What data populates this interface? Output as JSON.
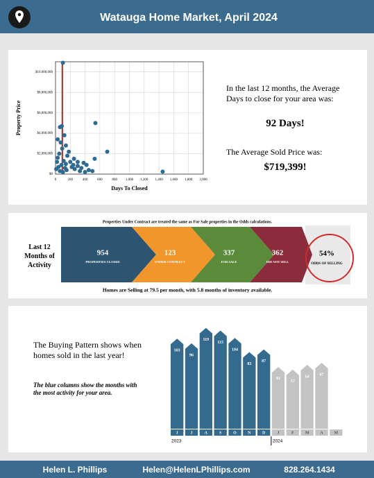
{
  "header": {
    "title": "Watauga Home Market, April 2024"
  },
  "chart_data": [
    {
      "type": "scatter",
      "x_label": "Days To Closed",
      "y_label": "Property Price",
      "color": "#2e6b93",
      "x": [
        100,
        60,
        85,
        120,
        30,
        70,
        140,
        540,
        700,
        1450,
        530,
        420,
        380,
        300,
        250,
        200,
        180,
        160,
        90,
        50,
        20,
        10,
        40,
        80,
        110,
        130,
        150,
        220,
        260,
        330,
        350,
        450,
        60,
        100,
        30,
        140,
        240,
        300,
        400,
        500
      ],
      "y": [
        10900000,
        4600000,
        4700000,
        3800000,
        3400000,
        3100000,
        2800000,
        5000000,
        2200000,
        250000,
        1500000,
        900000,
        1100000,
        800000,
        1500000,
        1200000,
        2200000,
        1800000,
        2500000,
        2000000,
        1200000,
        500000,
        700000,
        900000,
        1300000,
        600000,
        400000,
        700000,
        500000,
        300000,
        600000,
        400000,
        300000,
        200000,
        1600000,
        1000000,
        900000,
        1200000,
        200000,
        300000
      ],
      "xlim": [
        0,
        2000
      ],
      "ylim": [
        0,
        11000000
      ],
      "xticks": [
        0,
        200,
        400,
        600,
        800,
        {
          "value": 1000,
          "label": "1,000"
        },
        {
          "value": 1200,
          "label": "1,200"
        },
        {
          "value": 1400,
          "label": "1,400"
        },
        {
          "value": 1600,
          "label": "1,600"
        },
        {
          "value": 1800,
          "label": "1,800"
        },
        {
          "value": 2000,
          "label": "2,000"
        }
      ],
      "yticks": [
        {
          "value": 0,
          "label": "$0"
        },
        {
          "value": 2000000,
          "label": "$2,000,000"
        },
        {
          "value": 4000000,
          "label": "$4,000,000"
        },
        {
          "value": 6000000,
          "label": "$6,000,000"
        },
        {
          "value": 8000000,
          "label": "$8,000,000"
        },
        {
          "value": 10000000,
          "label": "$10,000,000"
        }
      ],
      "grid": true,
      "reference_line": {
        "x": 92,
        "color": "#b22222"
      }
    },
    {
      "type": "bar",
      "categories": [
        "J",
        "J",
        "A",
        "S",
        "O",
        "N",
        "D",
        "J",
        "F",
        "M",
        "A",
        "M"
      ],
      "values": [
        103,
        96,
        119,
        115,
        104,
        83,
        87,
        61,
        57,
        64,
        67,
        null
      ],
      "colors": [
        "#336a8e",
        "#336a8e",
        "#336a8e",
        "#336a8e",
        "#336a8e",
        "#336a8e",
        "#336a8e",
        "#c3c3c3",
        "#c3c3c3",
        "#c3c3c3",
        "#c3c3c3",
        "#c3c3c3"
      ],
      "year_labels": [
        "2023",
        "2024"
      ]
    }
  ],
  "summary": {
    "days_text": "In the last 12 months, the Average Days to close for your area was:",
    "days": "92 Days!",
    "price_text": "The Average Sold Price was:",
    "price": "$719,399!"
  },
  "activity": {
    "note": "Properties Under Contract are treated the same as For Sale properties in the Odds calculations.",
    "label": "Last 12 Months of Activity",
    "steps": [
      {
        "value": 954,
        "label": "PROPERTIES CLOSED"
      },
      {
        "value": 123,
        "label": "UNDER CONTRACT"
      },
      {
        "value": 337,
        "label": "FOR SALE"
      },
      {
        "value": 362,
        "label": "DID NOT SELL"
      }
    ],
    "odds": {
      "value": "54%",
      "label": "ODDS OF SELLING"
    },
    "footer": "Homes are Selling at 79.5 per month, with 5.8 months of inventory available."
  },
  "pattern": {
    "text": "The Buying Pattern shows when homes sold in the last year!",
    "note": "The blue columns show the months with the most activity for your area."
  },
  "footer": {
    "name": "Helen L. Phillips",
    "email": "Helen@HelenLPhillips.com",
    "phone": "828.264.1434"
  }
}
